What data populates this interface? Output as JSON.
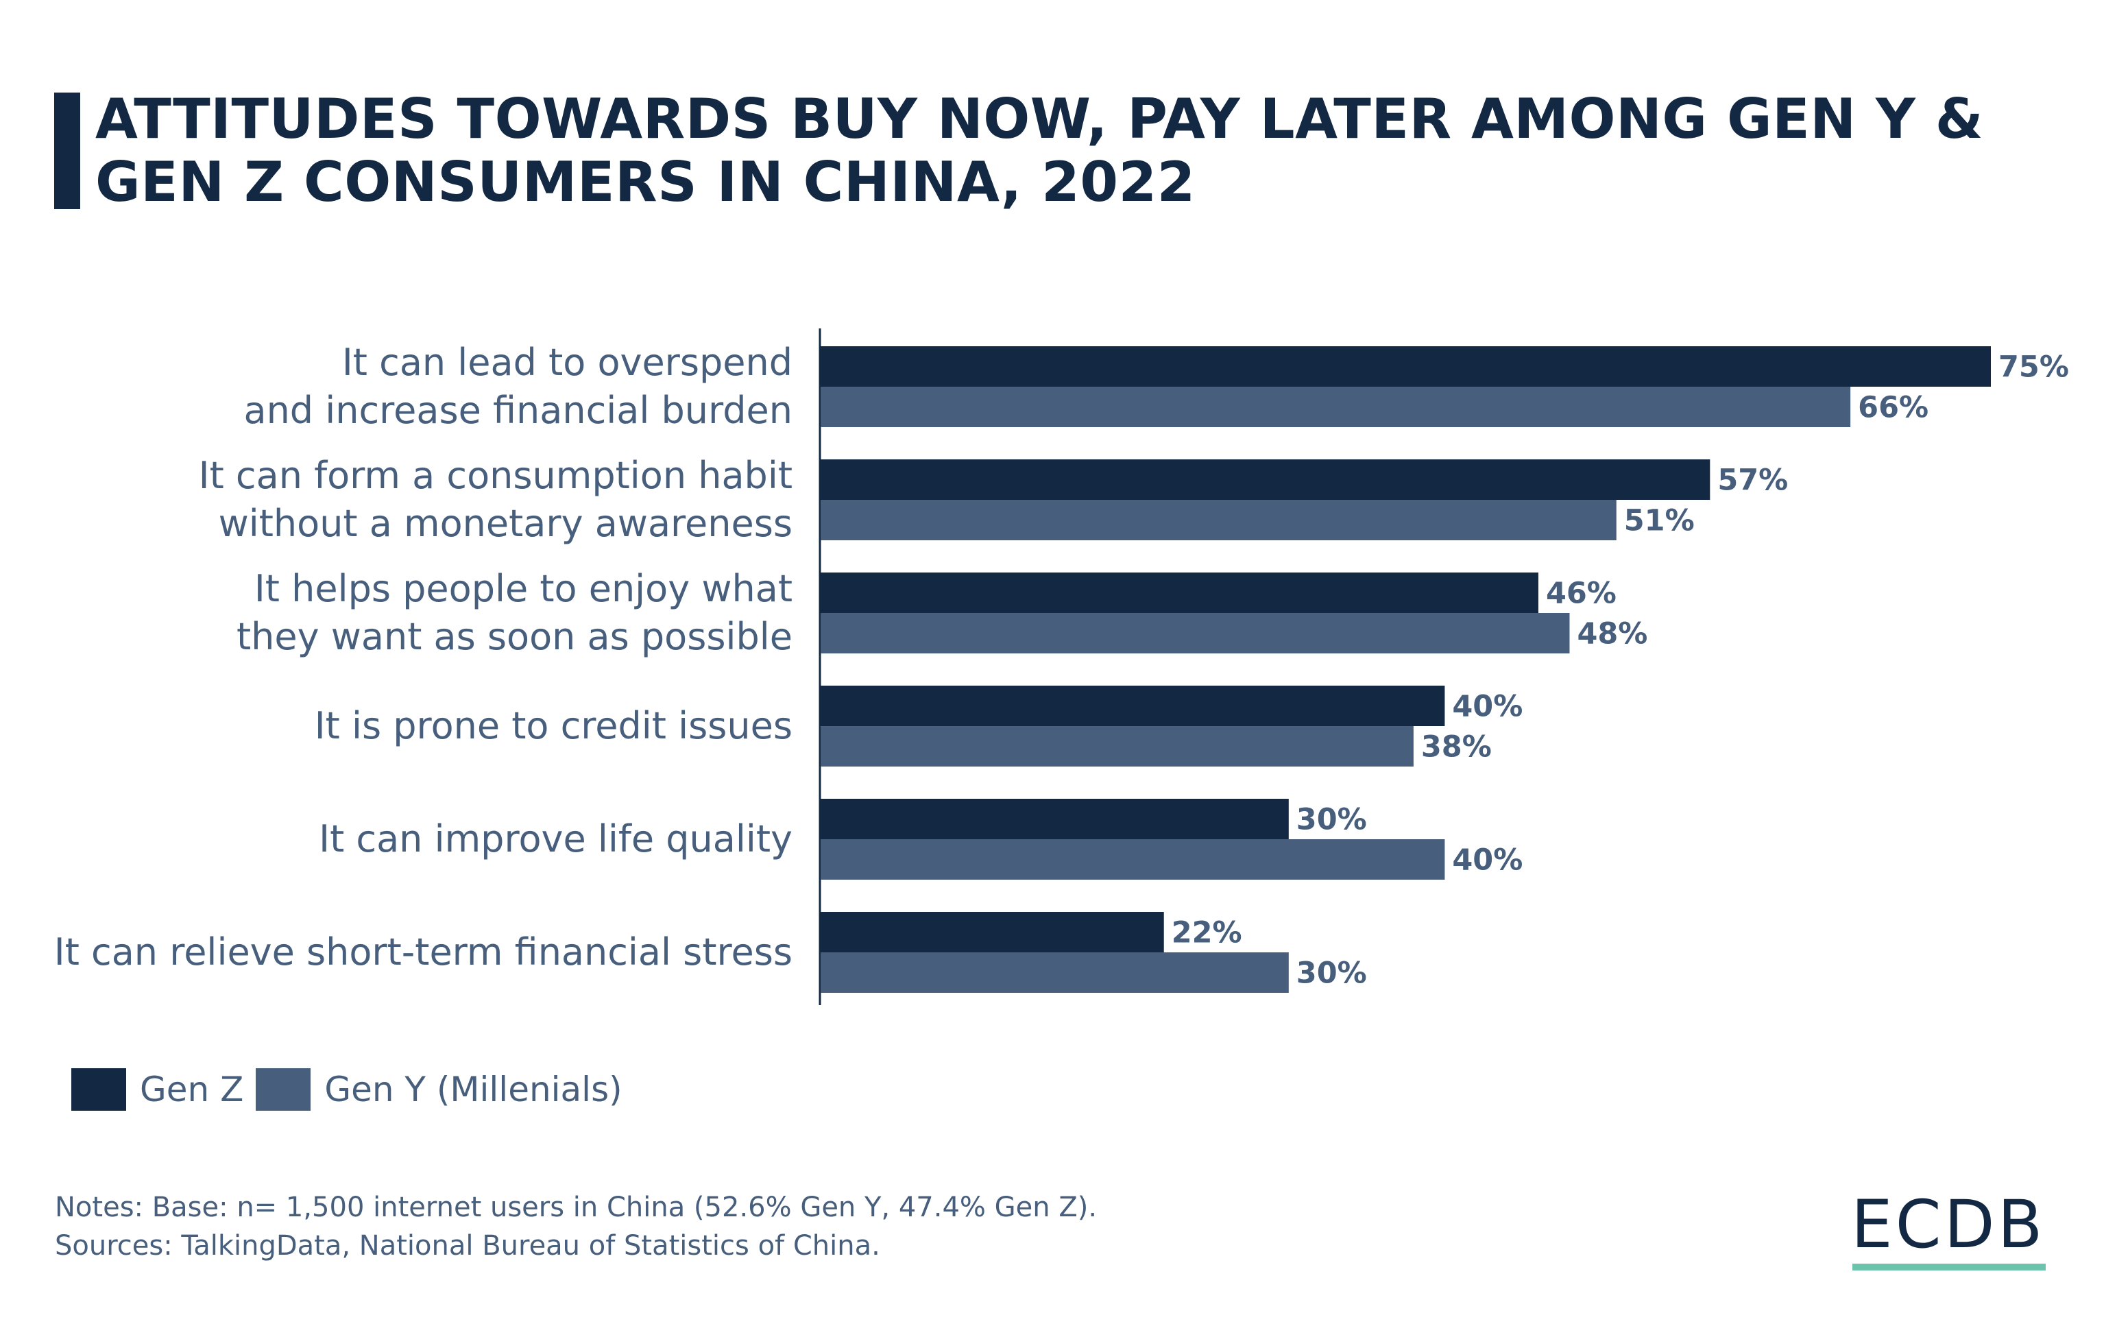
{
  "title": "ATTITUDES TOWARDS BUY NOW, PAY LATER AMONG GEN Y & GEN Z CONSUMERS IN CHINA, 2022",
  "colors": {
    "gen_z": "#132843",
    "gen_y": "#475f7c",
    "accent": "#6cc4ad",
    "text": "#475f7c"
  },
  "chart_data": {
    "type": "bar",
    "orientation": "horizontal",
    "title": "ATTITUDES TOWARDS BUY NOW, PAY LATER AMONG GEN Y & GEN Z CONSUMERS IN CHINA, 2022",
    "categories": [
      "It can lead to overspend\nand increase financial burden",
      "It can form a consumption habit\nwithout a monetary awareness",
      "It helps people to enjoy what\nthey want as soon as possible",
      "It is prone to credit issues",
      "It can improve life quality",
      "It can relieve short-term financial stress"
    ],
    "series": [
      {
        "name": "Gen Z",
        "values": [
          75,
          57,
          46,
          40,
          30,
          22
        ]
      },
      {
        "name": "Gen Y (Millenials)",
        "values": [
          66,
          51,
          48,
          38,
          40,
          30
        ]
      }
    ],
    "value_suffix": "%",
    "xlim": [
      0,
      100
    ],
    "grid": false,
    "legend": "bottom-left"
  },
  "legend": {
    "items": [
      "Gen Z",
      "Gen Y (Millenials)"
    ]
  },
  "notes": {
    "line1": "Notes: Base: n= 1,500 internet users in China (52.6% Gen Y, 47.4% Gen Z).",
    "line2": "Sources: TalkingData, National Bureau of Statistics of China."
  },
  "logo": "ECDB"
}
